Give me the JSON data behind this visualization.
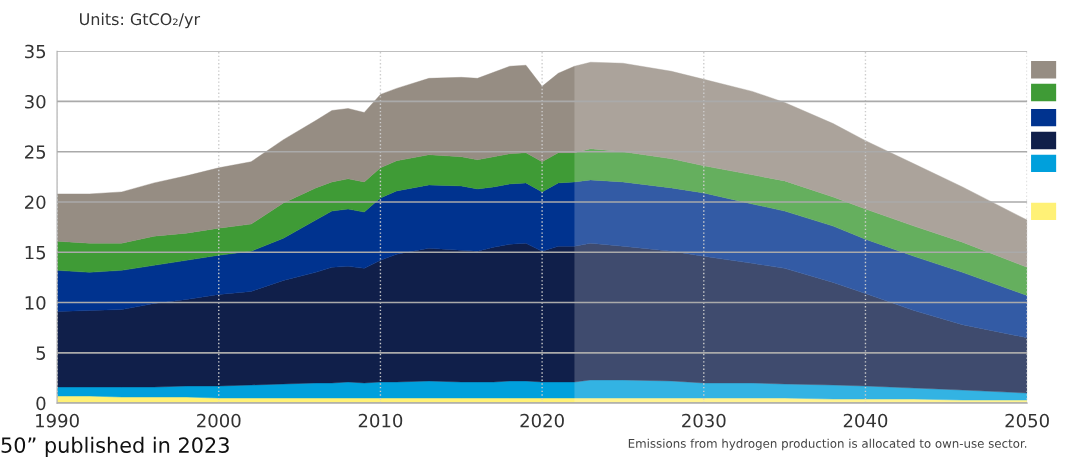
{
  "chart_data": {
    "type": "area",
    "stacked": true,
    "ylabel": "Units: GtCO₂/yr",
    "annotations": [
      "Emissions from hydrogen production is allocated to own-use sector.",
      "50” published in 2023"
    ],
    "xlim": [
      1990,
      2050
    ],
    "xticks": [
      1990,
      2000,
      2010,
      2020,
      2030,
      2040,
      2050
    ],
    "ylim": [
      0,
      35
    ],
    "yticks": [
      0,
      5,
      10,
      15,
      20,
      25,
      30,
      35
    ],
    "grid": true,
    "legend": false,
    "bands": [
      {
        "axis": "x",
        "from": 2022,
        "to": 2050,
        "color": "#ffffff"
      }
    ],
    "x": [
      1990,
      1992,
      1994,
      1996,
      1998,
      2000,
      2002,
      2004,
      2006,
      2007,
      2008,
      2009,
      2010,
      2011,
      2013,
      2015,
      2016,
      2017,
      2018,
      2019,
      2020,
      2021,
      2022,
      2023,
      2025,
      2028,
      2030,
      2033,
      2035,
      2038,
      2040,
      2043,
      2046,
      2050
    ],
    "series": [
      {
        "color": "#fff176",
        "values": [
          0.7,
          0.7,
          0.6,
          0.6,
          0.6,
          0.5,
          0.5,
          0.5,
          0.5,
          0.5,
          0.5,
          0.5,
          0.5,
          0.5,
          0.5,
          0.5,
          0.5,
          0.5,
          0.5,
          0.5,
          0.5,
          0.5,
          0.5,
          0.5,
          0.5,
          0.5,
          0.5,
          0.5,
          0.5,
          0.4,
          0.4,
          0.4,
          0.3,
          0.3
        ]
      },
      {
        "color": "#00a0dc",
        "values": [
          0.9,
          0.9,
          1.0,
          1.0,
          1.1,
          1.2,
          1.3,
          1.4,
          1.5,
          1.5,
          1.6,
          1.5,
          1.6,
          1.6,
          1.7,
          1.6,
          1.6,
          1.6,
          1.7,
          1.7,
          1.6,
          1.6,
          1.6,
          1.8,
          1.8,
          1.7,
          1.5,
          1.5,
          1.4,
          1.4,
          1.3,
          1.1,
          1.0,
          0.7
        ]
      },
      {
        "color": "#101f4a",
        "values": [
          7.5,
          7.6,
          7.7,
          8.3,
          8.6,
          9.1,
          9.3,
          10.3,
          11.0,
          11.5,
          11.5,
          11.4,
          12.1,
          12.7,
          13.2,
          13.1,
          13.0,
          13.4,
          13.6,
          13.7,
          13.0,
          13.5,
          13.5,
          13.6,
          13.3,
          12.9,
          12.6,
          11.9,
          11.5,
          10.2,
          9.2,
          7.7,
          6.5,
          5.5
        ]
      },
      {
        "color": "#00338f",
        "values": [
          4.1,
          3.8,
          3.9,
          3.8,
          3.9,
          3.9,
          4.0,
          4.2,
          5.2,
          5.6,
          5.7,
          5.6,
          6.2,
          6.3,
          6.3,
          6.4,
          6.2,
          6.0,
          6.0,
          6.0,
          5.9,
          6.3,
          6.4,
          6.3,
          6.4,
          6.3,
          6.3,
          5.9,
          5.7,
          5.6,
          5.4,
          5.4,
          5.2,
          4.2
        ]
      },
      {
        "color": "#3f9b36",
        "values": [
          2.9,
          2.9,
          2.7,
          2.9,
          2.7,
          2.7,
          2.7,
          3.5,
          3.2,
          2.9,
          3.0,
          3.0,
          3.0,
          3.0,
          3.0,
          2.9,
          2.9,
          3.0,
          3.0,
          3.0,
          3.0,
          3.0,
          2.9,
          3.1,
          3.0,
          2.9,
          2.7,
          2.9,
          3.0,
          2.9,
          3.0,
          3.0,
          3.0,
          2.8
        ]
      },
      {
        "color": "#968d83",
        "values": [
          4.7,
          4.9,
          5.1,
          5.3,
          5.7,
          6.0,
          6.2,
          6.3,
          6.7,
          7.1,
          7.0,
          6.9,
          7.3,
          7.2,
          7.6,
          7.9,
          8.1,
          8.4,
          8.7,
          8.7,
          7.5,
          7.9,
          8.6,
          8.6,
          8.8,
          8.7,
          8.6,
          8.3,
          7.8,
          7.3,
          6.8,
          6.2,
          5.5,
          4.7
        ]
      }
    ]
  }
}
